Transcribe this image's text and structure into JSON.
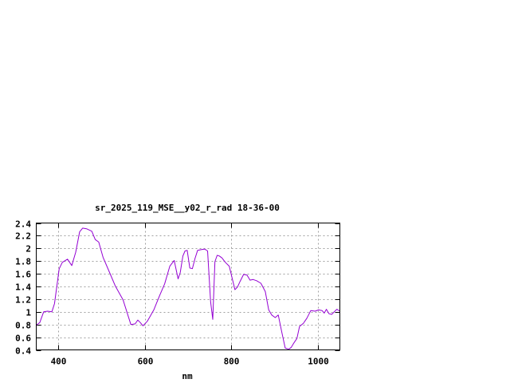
{
  "chart_data": {
    "type": "line",
    "title": "sr_2025_119_MSE__y02_r_rad 18-36-00",
    "xlabel": "nm",
    "ylabel": "",
    "xlim": [
      350,
      1050
    ],
    "ylim": [
      0.4,
      2.4
    ],
    "x_ticks": [
      400,
      600,
      800,
      1000
    ],
    "x_tick_labels": [
      "400",
      "600",
      "800",
      "1000"
    ],
    "y_ticks": [
      0.4,
      0.6,
      0.8,
      1.0,
      1.2,
      1.4,
      1.6,
      1.8,
      2.0,
      2.2,
      2.4
    ],
    "y_tick_labels": [
      "0.4",
      "0.6",
      "0.8",
      "1",
      "1.2",
      "1.4",
      "1.6",
      "1.8",
      "2",
      "2.2",
      "2.4"
    ],
    "grid": true,
    "legend": "none",
    "colors": {
      "series": "#9400d3",
      "grid": "#a0a0a0",
      "frame": "#000000"
    },
    "series": [
      {
        "x": [
          350,
          358,
          367,
          376,
          386,
          392,
          403,
          410,
          422,
          432,
          441,
          450,
          457,
          466,
          478,
          486,
          494,
          504,
          519,
          532,
          550,
          568,
          578,
          584,
          590,
          596,
          606,
          621,
          634,
          646,
          658,
          668,
          677,
          682,
          688,
          693,
          698,
          704,
          710,
          716,
          722,
          730,
          738,
          745,
          752,
          757,
          762,
          767,
          772,
          778,
          786,
          795,
          808,
          814,
          820,
          828,
          836,
          843,
          850,
          858,
          868,
          878,
          886,
          893,
          901,
          908,
          916,
          924,
          932,
          938,
          944,
          951,
          957,
          966,
          974,
          983,
          993,
          1001,
          1009,
          1014,
          1019,
          1025,
          1031,
          1037,
          1043,
          1050
        ],
        "y": [
          0.79,
          0.83,
          1.0,
          1.01,
          1.0,
          1.13,
          1.68,
          1.78,
          1.83,
          1.73,
          1.94,
          2.26,
          2.32,
          2.31,
          2.27,
          2.14,
          2.1,
          1.86,
          1.62,
          1.41,
          1.19,
          0.8,
          0.81,
          0.87,
          0.83,
          0.78,
          0.85,
          1.03,
          1.25,
          1.44,
          1.72,
          1.81,
          1.52,
          1.62,
          1.88,
          1.96,
          1.97,
          1.69,
          1.68,
          1.84,
          1.97,
          1.98,
          1.99,
          1.96,
          1.16,
          0.88,
          1.79,
          1.89,
          1.88,
          1.85,
          1.78,
          1.72,
          1.35,
          1.39,
          1.48,
          1.59,
          1.58,
          1.5,
          1.51,
          1.49,
          1.45,
          1.32,
          1.03,
          0.95,
          0.91,
          0.95,
          0.68,
          0.43,
          0.41,
          0.44,
          0.51,
          0.58,
          0.77,
          0.82,
          0.9,
          1.02,
          1.01,
          1.03,
          1.02,
          0.98,
          1.04,
          0.97,
          0.96,
          1.0,
          1.04,
          1.01
        ]
      }
    ]
  }
}
